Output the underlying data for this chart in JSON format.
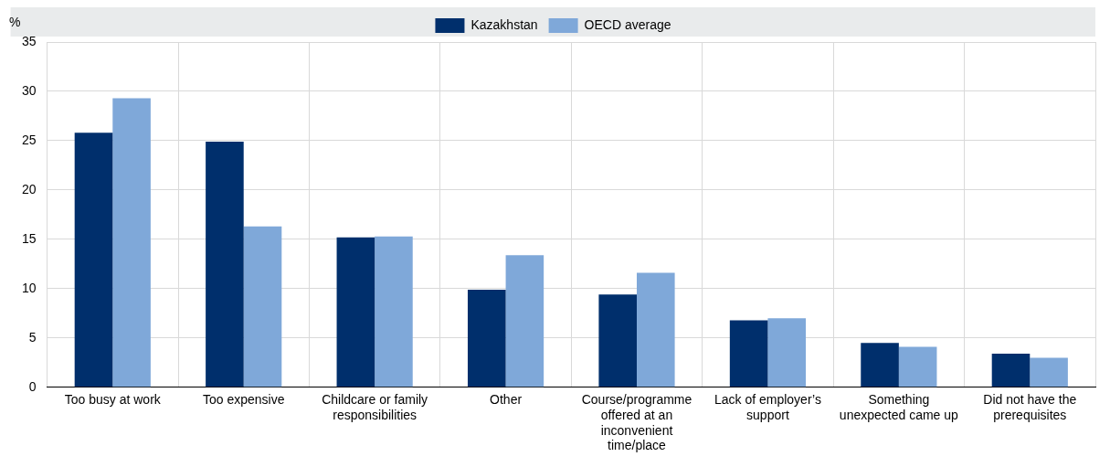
{
  "chart_data": {
    "type": "bar",
    "ylabel": "%",
    "categories": [
      "Too busy at work",
      "Too expensive",
      "Childcare or family responsibilities",
      "Other",
      "Course/programme offered at an inconvenient time/place",
      "Lack of employer’s support",
      "Something unexpected came up",
      "Did not have the prerequisites"
    ],
    "series": [
      {
        "name": "Kazakhstan",
        "color": "#002f6c",
        "values": [
          25.8,
          24.9,
          15.2,
          9.9,
          9.4,
          6.8,
          4.5,
          3.4
        ]
      },
      {
        "name": "OECD average",
        "color": "#7fa8d9",
        "values": [
          29.3,
          16.3,
          15.3,
          13.4,
          11.6,
          7.0,
          4.1,
          3.0
        ]
      }
    ],
    "ylim": [
      0,
      35
    ],
    "yticks": [
      0,
      5,
      10,
      15,
      20,
      25,
      30,
      35
    ],
    "grid": true,
    "legend": "top"
  }
}
